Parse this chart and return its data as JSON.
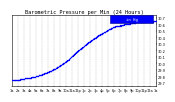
{
  "title": "Barometric Pressure per Min (24 Hours)",
  "ylim": [
    29.65,
    30.75
  ],
  "xlim": [
    0,
    1440
  ],
  "dot_color": "#0000ff",
  "dot_size": 0.8,
  "bg_color": "#ffffff",
  "grid_color": "#888888",
  "legend_bg": "#0000ff",
  "legend_text_color": "#ffffff",
  "legend_label": "in Hg",
  "title_fontsize": 3.8,
  "tick_fontsize": 2.5,
  "num_points": 1440,
  "ytick_vals": [
    29.7,
    29.8,
    29.9,
    30.0,
    30.1,
    30.2,
    30.3,
    30.4,
    30.5,
    30.6,
    30.7
  ],
  "xtick_labels": [
    "1a",
    "2a",
    "3a",
    "4a",
    "5a",
    "6a",
    "7a",
    "8a",
    "9a",
    "10a",
    "11a",
    "12p",
    "1p",
    "2p",
    "3p",
    "4p",
    "5p",
    "6p",
    "7p",
    "8p",
    "9p",
    "10p",
    "11p",
    "12a",
    "1a"
  ],
  "num_vgrid": 24
}
